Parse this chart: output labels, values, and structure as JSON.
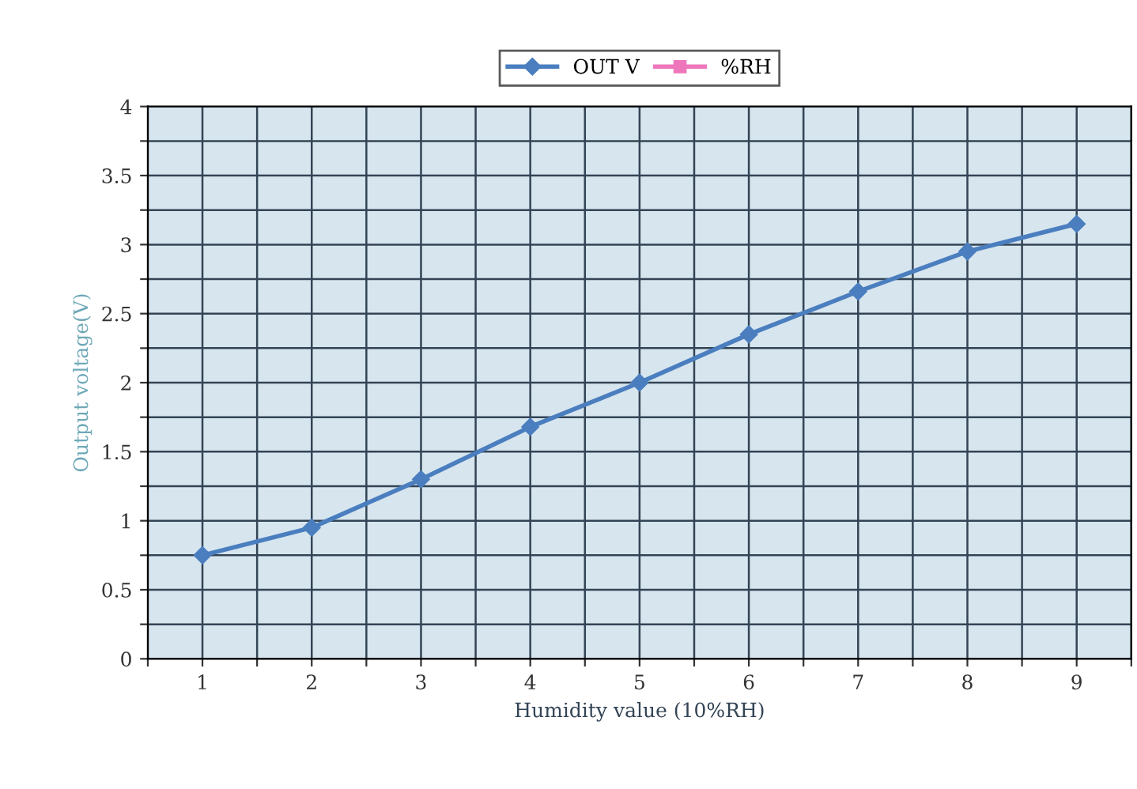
{
  "chart_data": {
    "type": "line",
    "xlabel": "Humidity value (10%RH)",
    "ylabel": "Output voltage(V)",
    "x": [
      1,
      2,
      3,
      4,
      5,
      6,
      7,
      8,
      9
    ],
    "series": [
      {
        "name": "OUT V",
        "color": "#4a7ebf",
        "marker": "diamond",
        "values": [
          0.75,
          0.95,
          1.3,
          1.68,
          2.0,
          2.35,
          2.66,
          2.95,
          3.15
        ]
      },
      {
        "name": "%RH",
        "color": "#ee77bb",
        "marker": "square",
        "values": [
          null,
          null,
          null,
          null,
          null,
          null,
          null,
          null,
          null
        ]
      }
    ],
    "xlim": [
      0.5,
      9.5
    ],
    "xticks": [
      {
        "value": 0.5,
        "label": null
      },
      1,
      {
        "value": 1.5,
        "label": null
      },
      2,
      {
        "value": 2.5,
        "label": null
      },
      3,
      {
        "value": 3.5,
        "label": null
      },
      4,
      {
        "value": 4.5,
        "label": null
      },
      5,
      {
        "value": 5.5,
        "label": null
      },
      6,
      {
        "value": 6.5,
        "label": null
      },
      7,
      {
        "value": 7.5,
        "label": null
      },
      8,
      {
        "value": 8.5,
        "label": null
      },
      9,
      {
        "value": 9.5,
        "label": null
      }
    ],
    "ylim": [
      0,
      4
    ],
    "yticks": [
      0,
      {
        "value": 0.25,
        "label": null
      },
      0.5,
      {
        "value": 0.75,
        "label": null
      },
      1,
      {
        "value": 1.25,
        "label": null
      },
      1.5,
      {
        "value": 1.75,
        "label": null
      },
      2,
      {
        "value": 2.25,
        "label": null
      },
      2.5,
      {
        "value": 2.75,
        "label": null
      },
      3,
      {
        "value": 3.25,
        "label": null
      },
      3.5,
      {
        "value": 3.75,
        "label": null
      },
      4
    ],
    "grid": true,
    "legend": "top",
    "line_style": "solid"
  }
}
